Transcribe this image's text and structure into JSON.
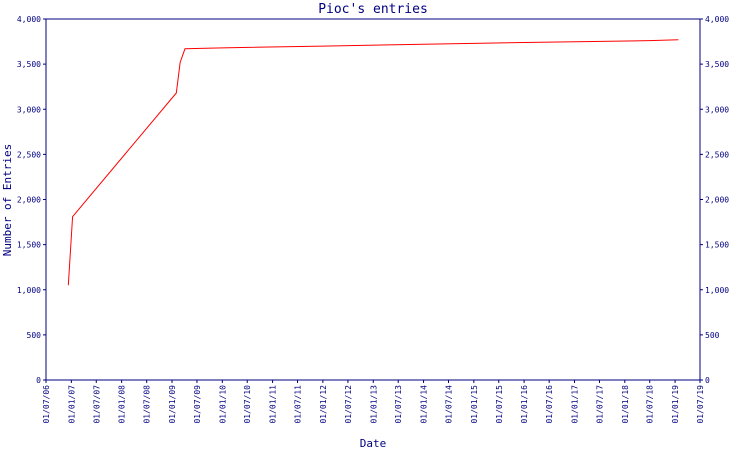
{
  "chart_data": {
    "type": "line",
    "title": "Pioc's entries",
    "x_label": "Date",
    "y_label": "Number of Entries",
    "x": [
      "2006-12-10",
      "2007-01-10",
      "2009-02-01",
      "2009-03-01",
      "2009-04-05",
      "2010-01-01",
      "2012-01-01",
      "2014-01-01",
      "2016-01-01",
      "2018-07-01",
      "2019-01-25"
    ],
    "values": [
      1050,
      1810,
      3180,
      3520,
      3670,
      3680,
      3700,
      3720,
      3740,
      3760,
      3770
    ],
    "color": "#ff0000",
    "xlim": [
      "2006-07-01",
      "2019-07-01"
    ],
    "xticks": [
      {
        "value": "2006-07-01",
        "label": "01/07/06"
      },
      {
        "value": "2007-01-01",
        "label": "01/01/07"
      },
      {
        "value": "2007-07-01",
        "label": "01/07/07"
      },
      {
        "value": "2008-01-01",
        "label": "01/01/08"
      },
      {
        "value": "2008-07-01",
        "label": "01/07/08"
      },
      {
        "value": "2009-01-01",
        "label": "01/01/09"
      },
      {
        "value": "2009-07-01",
        "label": "01/07/09"
      },
      {
        "value": "2010-01-01",
        "label": "01/01/10"
      },
      {
        "value": "2010-07-01",
        "label": "01/07/10"
      },
      {
        "value": "2011-01-01",
        "label": "01/01/11"
      },
      {
        "value": "2011-07-01",
        "label": "01/07/11"
      },
      {
        "value": "2012-01-01",
        "label": "01/01/12"
      },
      {
        "value": "2012-07-01",
        "label": "01/07/12"
      },
      {
        "value": "2013-01-01",
        "label": "01/01/13"
      },
      {
        "value": "2013-07-01",
        "label": "01/07/13"
      },
      {
        "value": "2014-01-01",
        "label": "01/01/14"
      },
      {
        "value": "2014-07-01",
        "label": "01/07/14"
      },
      {
        "value": "2015-01-01",
        "label": "01/01/15"
      },
      {
        "value": "2015-07-01",
        "label": "01/07/15"
      },
      {
        "value": "2016-01-01",
        "label": "01/01/16"
      },
      {
        "value": "2016-07-01",
        "label": "01/07/16"
      },
      {
        "value": "2017-01-01",
        "label": "01/01/17"
      },
      {
        "value": "2017-07-01",
        "label": "01/07/17"
      },
      {
        "value": "2018-01-01",
        "label": "01/01/18"
      },
      {
        "value": "2018-07-01",
        "label": "01/07/18"
      },
      {
        "value": "2019-01-01",
        "label": "01/01/19"
      },
      {
        "value": "2019-07-01",
        "label": "01/07/19"
      }
    ],
    "ylim": [
      0,
      4000
    ],
    "yticks": [
      0,
      500,
      {
        "value": 1000,
        "label": "1,000"
      },
      {
        "value": 1500,
        "label": "1,500"
      },
      {
        "value": 2000,
        "label": "2,000"
      },
      {
        "value": 2500,
        "label": "2,500"
      },
      {
        "value": 3000,
        "label": "3,000"
      },
      {
        "value": 3500,
        "label": "3,500"
      },
      {
        "value": 4000,
        "label": "4,000"
      }
    ],
    "y2lim": [
      0,
      4000
    ],
    "y2ticks": [
      0,
      500,
      {
        "value": 1000,
        "label": "1,000"
      },
      {
        "value": 1500,
        "label": "1,500"
      },
      {
        "value": 2000,
        "label": "2,000"
      },
      {
        "value": 2500,
        "label": "2,500"
      },
      {
        "value": 3000,
        "label": "3,000"
      },
      {
        "value": 3500,
        "label": "3,500"
      },
      {
        "value": 4000,
        "label": "4,000"
      }
    ],
    "axis_color": "#000080"
  }
}
